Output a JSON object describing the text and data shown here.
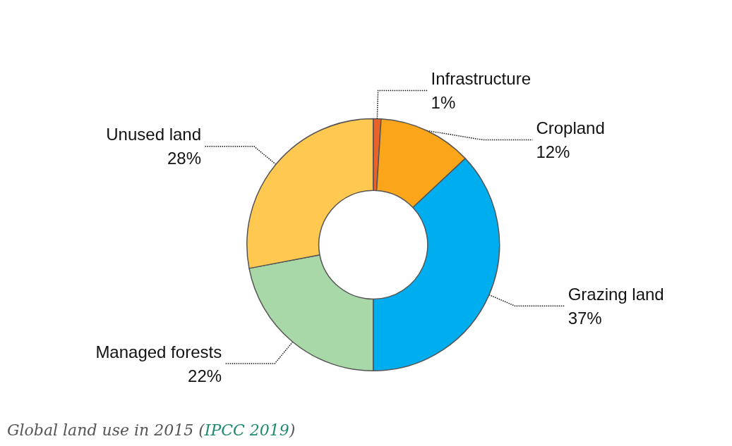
{
  "chart_data": {
    "type": "donut",
    "categories": [
      "Infrastructure",
      "Cropland",
      "Grazing land",
      "Managed forests",
      "Unused land"
    ],
    "values": [
      1,
      12,
      37,
      22,
      28
    ],
    "value_labels": [
      "1%",
      "12%",
      "37%",
      "22%",
      "28%"
    ],
    "colors": [
      "#e8622a",
      "#fba51a",
      "#00aeef",
      "#a8d8a8",
      "#fec851"
    ],
    "annotations": [
      "Global land use in 2015 (IPCC 2019)"
    ]
  }
}
